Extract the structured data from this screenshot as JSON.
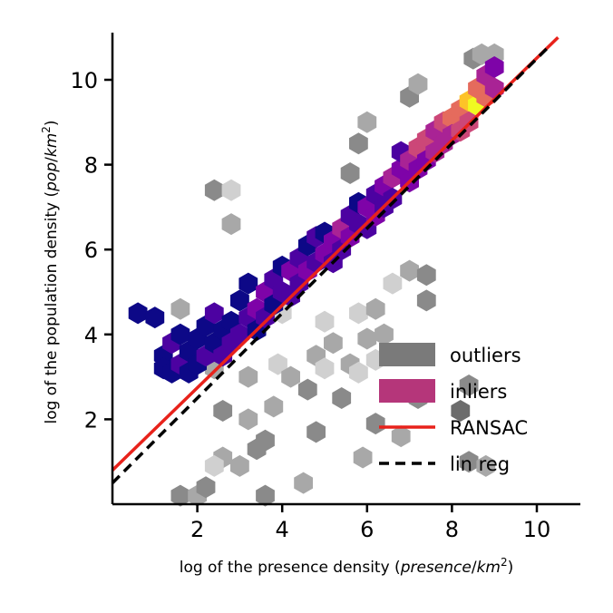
{
  "chart_data": {
    "type": "scatter",
    "subtype": "hexbin",
    "xlabel": {
      "prefix": "log of the presence density (",
      "num": "presence",
      "den": "km",
      "sup": "2",
      "suffix": ")"
    },
    "ylabel": {
      "prefix": "log of the population density (",
      "num": "pop",
      "den": "km",
      "sup": "2",
      "suffix": ")"
    },
    "xlim": [
      0,
      11
    ],
    "ylim": [
      0,
      11
    ],
    "x_ticks": [
      2,
      4,
      6,
      8,
      10
    ],
    "y_ticks": [
      2,
      4,
      6,
      8,
      10
    ],
    "grid": false,
    "legend_position": "lower-right",
    "legend": [
      {
        "label": "outliers",
        "type": "patch",
        "color": "#7a7a7a"
      },
      {
        "label": "inliers",
        "type": "patch",
        "color": "#b5367a"
      },
      {
        "label": "RANSAC",
        "type": "line",
        "color": "#e8221b",
        "dash": "solid"
      },
      {
        "label": "lin reg",
        "type": "line",
        "color": "#000000",
        "dash": "dashed"
      }
    ],
    "lines": [
      {
        "name": "RANSAC",
        "x": [
          0,
          10.5
        ],
        "y": [
          0.8,
          11.0
        ],
        "color": "#e8221b"
      },
      {
        "name": "lin reg",
        "x": [
          0,
          10.3
        ],
        "y": [
          0.5,
          10.8
        ],
        "color": "#000000"
      }
    ],
    "inlier_colormap": [
      "#0d0887",
      "#4c02a1",
      "#7e03a8",
      "#a92395",
      "#cc4778",
      "#e56b5d",
      "#f89441",
      "#fdc328",
      "#f0f921"
    ],
    "inlier_density_range": [
      1,
      9
    ],
    "inliers": [
      [
        0.6,
        4.5,
        1
      ],
      [
        1.0,
        4.4,
        1
      ],
      [
        1.2,
        3.5,
        1
      ],
      [
        1.2,
        3.2,
        1
      ],
      [
        1.4,
        3.8,
        2
      ],
      [
        1.4,
        3.1,
        1
      ],
      [
        1.6,
        4.0,
        1
      ],
      [
        1.6,
        3.3,
        2
      ],
      [
        1.8,
        3.6,
        1
      ],
      [
        1.8,
        3.1,
        1
      ],
      [
        2.0,
        3.3,
        1
      ],
      [
        2.0,
        3.9,
        1
      ],
      [
        2.2,
        3.5,
        2
      ],
      [
        2.2,
        4.2,
        1
      ],
      [
        2.4,
        3.8,
        1
      ],
      [
        2.4,
        4.5,
        2
      ],
      [
        2.6,
        3.5,
        2
      ],
      [
        2.6,
        4.1,
        1
      ],
      [
        2.8,
        4.3,
        1
      ],
      [
        2.8,
        3.8,
        2
      ],
      [
        3.0,
        4.8,
        1
      ],
      [
        3.0,
        4.0,
        2
      ],
      [
        3.2,
        4.4,
        2
      ],
      [
        3.2,
        5.2,
        1
      ],
      [
        3.4,
        4.6,
        3
      ],
      [
        3.4,
        4.1,
        1
      ],
      [
        3.6,
        5.0,
        3
      ],
      [
        3.6,
        4.4,
        2
      ],
      [
        3.8,
        5.3,
        2
      ],
      [
        3.8,
        4.7,
        1
      ],
      [
        4.0,
        5.0,
        2
      ],
      [
        4.0,
        5.6,
        1
      ],
      [
        4.2,
        5.5,
        3
      ],
      [
        4.2,
        4.9,
        2
      ],
      [
        4.4,
        5.8,
        2
      ],
      [
        4.4,
        5.2,
        2
      ],
      [
        4.6,
        5.5,
        3
      ],
      [
        4.6,
        6.1,
        1
      ],
      [
        4.8,
        5.7,
        2
      ],
      [
        4.8,
        6.3,
        2
      ],
      [
        5.0,
        5.9,
        3
      ],
      [
        5.0,
        6.4,
        1
      ],
      [
        5.2,
        6.2,
        3
      ],
      [
        5.2,
        5.7,
        2
      ],
      [
        5.4,
        6.5,
        4
      ],
      [
        5.4,
        6.0,
        2
      ],
      [
        5.6,
        6.8,
        2
      ],
      [
        5.6,
        6.3,
        3
      ],
      [
        5.8,
        6.6,
        2
      ],
      [
        5.8,
        7.1,
        1
      ],
      [
        6.0,
        7.0,
        3
      ],
      [
        6.0,
        6.5,
        2
      ],
      [
        6.2,
        7.3,
        2
      ],
      [
        6.2,
        6.8,
        3
      ],
      [
        6.4,
        7.5,
        3
      ],
      [
        6.4,
        7.0,
        2
      ],
      [
        6.6,
        7.7,
        4
      ],
      [
        6.6,
        7.2,
        2
      ],
      [
        6.8,
        7.9,
        3
      ],
      [
        6.8,
        8.3,
        2
      ],
      [
        7.0,
        8.1,
        4
      ],
      [
        7.0,
        7.6,
        3
      ],
      [
        7.2,
        8.4,
        5
      ],
      [
        7.2,
        7.9,
        3
      ],
      [
        7.4,
        8.6,
        5
      ],
      [
        7.4,
        8.1,
        3
      ],
      [
        7.6,
        8.8,
        4
      ],
      [
        7.6,
        8.3,
        4
      ],
      [
        7.8,
        9.0,
        5
      ],
      [
        7.8,
        8.5,
        4
      ],
      [
        8.0,
        9.1,
        6
      ],
      [
        8.0,
        8.7,
        4
      ],
      [
        8.2,
        9.3,
        6
      ],
      [
        8.2,
        8.8,
        5
      ],
      [
        8.4,
        9.5,
        8
      ],
      [
        8.4,
        9.0,
        5
      ],
      [
        8.6,
        9.4,
        9
      ],
      [
        8.6,
        9.8,
        6
      ],
      [
        8.8,
        9.6,
        6
      ],
      [
        8.8,
        10.1,
        4
      ],
      [
        9.0,
        10.3,
        3
      ],
      [
        9.0,
        9.8,
        4
      ]
    ],
    "outlier_range": [
      1,
      4
    ],
    "outliers": [
      [
        2.4,
        7.4,
        3
      ],
      [
        2.8,
        7.4,
        1
      ],
      [
        2.8,
        6.6,
        2
      ],
      [
        2.4,
        4.1,
        1
      ],
      [
        2.4,
        3.2,
        2
      ],
      [
        2.6,
        2.2,
        3
      ],
      [
        2.6,
        1.1,
        2
      ],
      [
        2.4,
        0.9,
        1
      ],
      [
        1.6,
        0.2,
        3
      ],
      [
        2.0,
        0.2,
        2
      ],
      [
        2.2,
        0.4,
        3
      ],
      [
        3.2,
        2.0,
        2
      ],
      [
        3.4,
        1.3,
        3
      ],
      [
        3.0,
        0.9,
        2
      ],
      [
        3.6,
        1.5,
        3
      ],
      [
        3.8,
        2.3,
        2
      ],
      [
        3.9,
        3.3,
        1
      ],
      [
        4.2,
        3.0,
        2
      ],
      [
        4.6,
        2.7,
        3
      ],
      [
        4.8,
        3.5,
        2
      ],
      [
        5.0,
        3.2,
        1
      ],
      [
        5.2,
        3.8,
        2
      ],
      [
        5.4,
        2.5,
        3
      ],
      [
        5.6,
        3.3,
        2
      ],
      [
        5.8,
        3.1,
        1
      ],
      [
        6.0,
        3.9,
        2
      ],
      [
        5.8,
        4.5,
        1
      ],
      [
        6.2,
        4.6,
        2
      ],
      [
        6.2,
        3.4,
        1
      ],
      [
        6.4,
        4.0,
        2
      ],
      [
        6.6,
        5.2,
        1
      ],
      [
        7.0,
        5.5,
        2
      ],
      [
        7.4,
        5.4,
        3
      ],
      [
        7.4,
        4.8,
        3
      ],
      [
        6.8,
        1.6,
        2
      ],
      [
        7.2,
        2.5,
        3
      ],
      [
        6.2,
        1.9,
        3
      ],
      [
        5.9,
        1.1,
        2
      ],
      [
        8.2,
        2.2,
        4
      ],
      [
        8.4,
        2.8,
        3
      ],
      [
        8.4,
        1.0,
        3
      ],
      [
        8.8,
        0.9,
        2
      ],
      [
        5.6,
        7.8,
        3
      ],
      [
        5.8,
        8.5,
        3
      ],
      [
        6.0,
        9.0,
        2
      ],
      [
        7.0,
        9.6,
        3
      ],
      [
        7.2,
        9.9,
        2
      ],
      [
        8.5,
        10.5,
        3
      ],
      [
        8.7,
        10.6,
        2
      ],
      [
        9.0,
        10.6,
        2
      ],
      [
        3.6,
        0.2,
        3
      ],
      [
        4.5,
        0.5,
        2
      ],
      [
        4.0,
        4.5,
        1
      ],
      [
        3.0,
        4.8,
        1
      ],
      [
        1.6,
        4.6,
        2
      ],
      [
        5.0,
        4.3,
        1
      ],
      [
        3.2,
        3.0,
        2
      ],
      [
        4.8,
        1.7,
        3
      ]
    ]
  }
}
